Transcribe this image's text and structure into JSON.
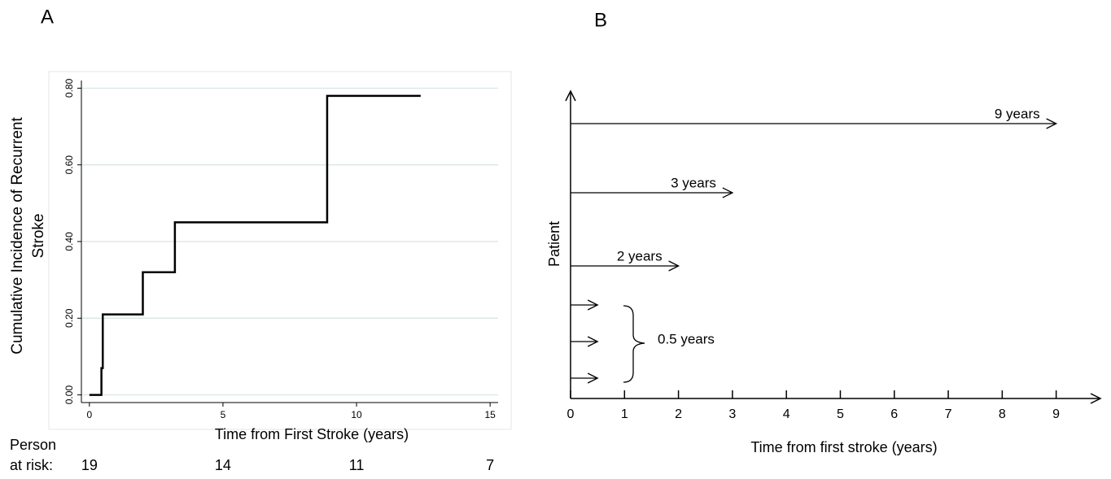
{
  "chart_data": [
    {
      "type": "step",
      "title": "A",
      "x": [
        0,
        0.45,
        0.5,
        2.0,
        3.2,
        8.9,
        12.4
      ],
      "values": [
        0,
        0.07,
        0.21,
        0.32,
        0.45,
        0.78,
        0.78
      ],
      "color": "#000000",
      "xlim": [
        -0.3,
        15.3
      ],
      "xticks": [
        0,
        5,
        10,
        15
      ],
      "ylim": [
        -0.02,
        0.82
      ],
      "yticks": [
        {
          "value": 0,
          "label": "0.00"
        },
        {
          "value": 0.2,
          "label": "0.20"
        },
        {
          "value": 0.4,
          "label": "0.40"
        },
        {
          "value": 0.6,
          "label": "0.60"
        },
        {
          "value": 0.8,
          "label": "0.80"
        }
      ],
      "grid": true,
      "xlabel": "Time from First Stroke (years)",
      "ylabel": [
        "Cumulative Incidence of Recurrent",
        "Stroke"
      ],
      "at_risk": {
        "label": [
          "Person",
          "at risk:"
        ],
        "x": [
          0,
          5,
          10,
          15
        ],
        "values": [
          19,
          14,
          11,
          7
        ]
      }
    },
    {
      "type": "arrow",
      "title": "B",
      "values": [
        9,
        3,
        2,
        0.5,
        0.5,
        0.5
      ],
      "value_labels": [
        "9 years",
        "3 years",
        "2 years",
        null,
        "0.5 years",
        null
      ],
      "color": "#000000",
      "xlim": [
        0,
        9.82
      ],
      "xticks": [
        0,
        1,
        2,
        3,
        4,
        5,
        6,
        7,
        8,
        9
      ],
      "xlabel": "Time from first stroke (years)",
      "ylabel": "Patient"
    }
  ]
}
